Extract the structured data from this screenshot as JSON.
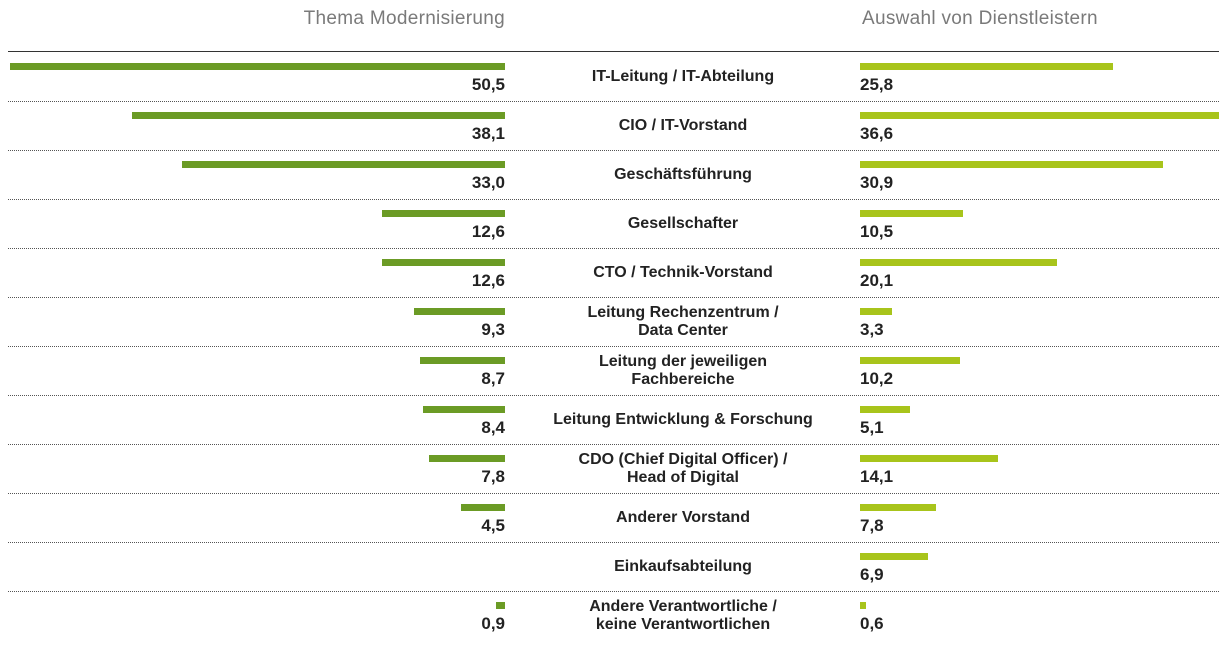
{
  "chart_data": {
    "type": "butterfly-bar",
    "categories": [
      "IT-Leitung / IT-Abteilung",
      "CIO / IT-Vorstand",
      "Geschäftsführung",
      "Gesellschafter",
      "CTO / Technik-Vorstand",
      "Leitung Rechenzentrum /\nData Center",
      "Leitung der jeweiligen\nFachbereiche",
      "Leitung Entwicklung & Forschung",
      "CDO (Chief Digital Officer) /\nHead of Digital",
      "Anderer Vorstand",
      "Einkaufsabteilung",
      "Andere Verantwortliche /\nkeine Verantwortlichen"
    ],
    "series": [
      {
        "name": "Thema Modernisierung",
        "color": "#6b9b25",
        "values": [
          50.5,
          38.1,
          33.0,
          12.6,
          12.6,
          9.3,
          8.7,
          8.4,
          7.8,
          4.5,
          null,
          0.9
        ],
        "value_labels": [
          "50,5",
          "38,1",
          "33,0",
          "12,6",
          "12,6",
          "9,3",
          "8,7",
          "8,4",
          "7,8",
          "4,5",
          null,
          "0,9"
        ]
      },
      {
        "name": "Auswahl von Dienstleistern",
        "color": "#a8c41b",
        "values": [
          25.8,
          36.6,
          30.9,
          10.5,
          20.1,
          3.3,
          10.2,
          5.1,
          14.1,
          7.8,
          6.9,
          0.6
        ],
        "value_labels": [
          "25,8",
          "36,6",
          "30,9",
          "10,5",
          "20,1",
          "3,3",
          "10,2",
          "5,1",
          "14,1",
          "7,8",
          "6,9",
          "0,6"
        ]
      }
    ]
  }
}
